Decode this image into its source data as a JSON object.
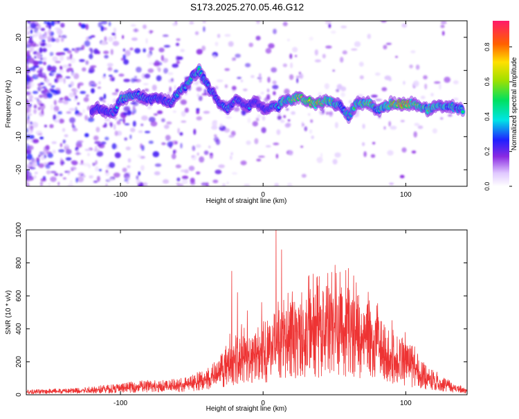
{
  "title": "S173.2025.270.05.46.G12",
  "colors": {
    "snr_line": "#ee3333",
    "spectrogram_ridge": "#00e5e5",
    "spectrogram_peak": "#ff2020",
    "spectrogram_halo": "#8a2be2"
  },
  "colorbar": {
    "label": "Normalized spectral amplitude",
    "ticks": [
      "0.0",
      "0.2",
      "0.4",
      "0.6",
      "0.8"
    ],
    "tick_values": [
      0.0,
      0.2,
      0.4,
      0.6,
      0.8
    ],
    "range": [
      0,
      0.95
    ]
  },
  "chart_data": [
    {
      "type": "heatmap",
      "xlabel": "Height of straight line (km)",
      "ylabel": "Frequency (Hz)",
      "xlim": [
        -166,
        143
      ],
      "ylim": [
        -25,
        25
      ],
      "xticks": [
        -100,
        0,
        100
      ],
      "xtick_labels": [
        "-100",
        "0",
        "100"
      ],
      "yticks": [
        -20,
        -10,
        0,
        10,
        20
      ],
      "ytick_labels": [
        "-20",
        "-10",
        "0",
        "10",
        "20"
      ],
      "grid": false,
      "ridge": {
        "x": [
          -120,
          -115,
          -110,
          -105,
          -100,
          -95,
          -90,
          -85,
          -80,
          -75,
          -70,
          -65,
          -60,
          -55,
          -50,
          -45,
          -40,
          -35,
          -30,
          -25,
          -20,
          -15,
          -10,
          -5,
          0,
          5,
          10,
          15,
          20,
          25,
          30,
          35,
          40,
          45,
          50,
          55,
          60,
          65,
          70,
          75,
          80,
          85,
          90,
          95,
          100,
          105,
          110,
          115,
          120,
          125,
          130,
          135,
          140
        ],
        "y": [
          -2,
          -1.5,
          -2,
          -3,
          1,
          2,
          3,
          2,
          1,
          2,
          1,
          0,
          3,
          5,
          8,
          10,
          6,
          3,
          0,
          -2,
          1,
          0,
          -1,
          1,
          -2,
          -1,
          -1,
          1,
          1,
          2,
          1,
          0,
          0,
          1,
          0,
          -1,
          -4,
          0,
          0,
          0,
          -2,
          -1,
          0,
          0,
          0,
          0,
          -1,
          -2,
          -1,
          -1,
          -1,
          -1,
          -2
        ],
        "amplitude": [
          0.3,
          0.3,
          0.35,
          0.3,
          0.45,
          0.45,
          0.4,
          0.4,
          0.35,
          0.35,
          0.3,
          0.35,
          0.4,
          0.45,
          0.45,
          0.45,
          0.4,
          0.4,
          0.35,
          0.4,
          0.4,
          0.35,
          0.35,
          0.3,
          0.3,
          0.35,
          0.45,
          0.55,
          0.6,
          0.7,
          0.7,
          0.7,
          0.75,
          0.6,
          0.55,
          0.5,
          0.45,
          0.55,
          0.6,
          0.6,
          0.5,
          0.55,
          0.7,
          0.8,
          0.85,
          0.7,
          0.6,
          0.55,
          0.55,
          0.5,
          0.5,
          0.45,
          0.45
        ]
      }
    },
    {
      "type": "line",
      "xlabel": "Height of straight line (km)",
      "ylabel": "SNR (10 * v/v)",
      "xlim": [
        -166,
        143
      ],
      "ylim": [
        0,
        1000
      ],
      "xticks": [
        -100,
        0,
        100
      ],
      "xtick_labels": [
        "-100",
        "0",
        "100"
      ],
      "yticks": [
        0,
        200,
        400,
        600,
        800,
        1000
      ],
      "ytick_labels": [
        "0",
        "200",
        "400",
        "600",
        "800",
        "1000"
      ],
      "grid": false,
      "series": [
        {
          "x": [
            -166,
            -150,
            -140,
            -130,
            -120,
            -110,
            -100,
            -90,
            -80,
            -70,
            -60,
            -50,
            -40,
            -35,
            -30,
            -25,
            -20,
            -15,
            -10,
            -5,
            0,
            5,
            10,
            15,
            20,
            25,
            30,
            35,
            40,
            45,
            50,
            55,
            60,
            65,
            70,
            75,
            80,
            85,
            90,
            95,
            100,
            105,
            110,
            115,
            120,
            125,
            130,
            135,
            143
          ],
          "y": [
            20,
            25,
            25,
            30,
            35,
            40,
            45,
            55,
            60,
            60,
            65,
            80,
            110,
            130,
            170,
            200,
            230,
            240,
            250,
            270,
            290,
            320,
            350,
            370,
            380,
            390,
            400,
            410,
            420,
            430,
            440,
            440,
            430,
            410,
            390,
            360,
            320,
            290,
            260,
            240,
            210,
            180,
            150,
            120,
            100,
            80,
            60,
            45,
            30
          ],
          "peaks": [
            {
              "x": -26,
              "y": 295
            },
            {
              "x": -22,
              "y": 750
            },
            {
              "x": -18,
              "y": 620
            },
            {
              "x": -11,
              "y": 510
            },
            {
              "x": -1,
              "y": 560
            },
            {
              "x": 9,
              "y": 1000
            },
            {
              "x": 13,
              "y": 880
            },
            {
              "x": 27,
              "y": 620
            },
            {
              "x": 33,
              "y": 640
            },
            {
              "x": 45,
              "y": 660
            },
            {
              "x": 55,
              "y": 650
            },
            {
              "x": 62,
              "y": 560
            }
          ]
        }
      ]
    }
  ]
}
